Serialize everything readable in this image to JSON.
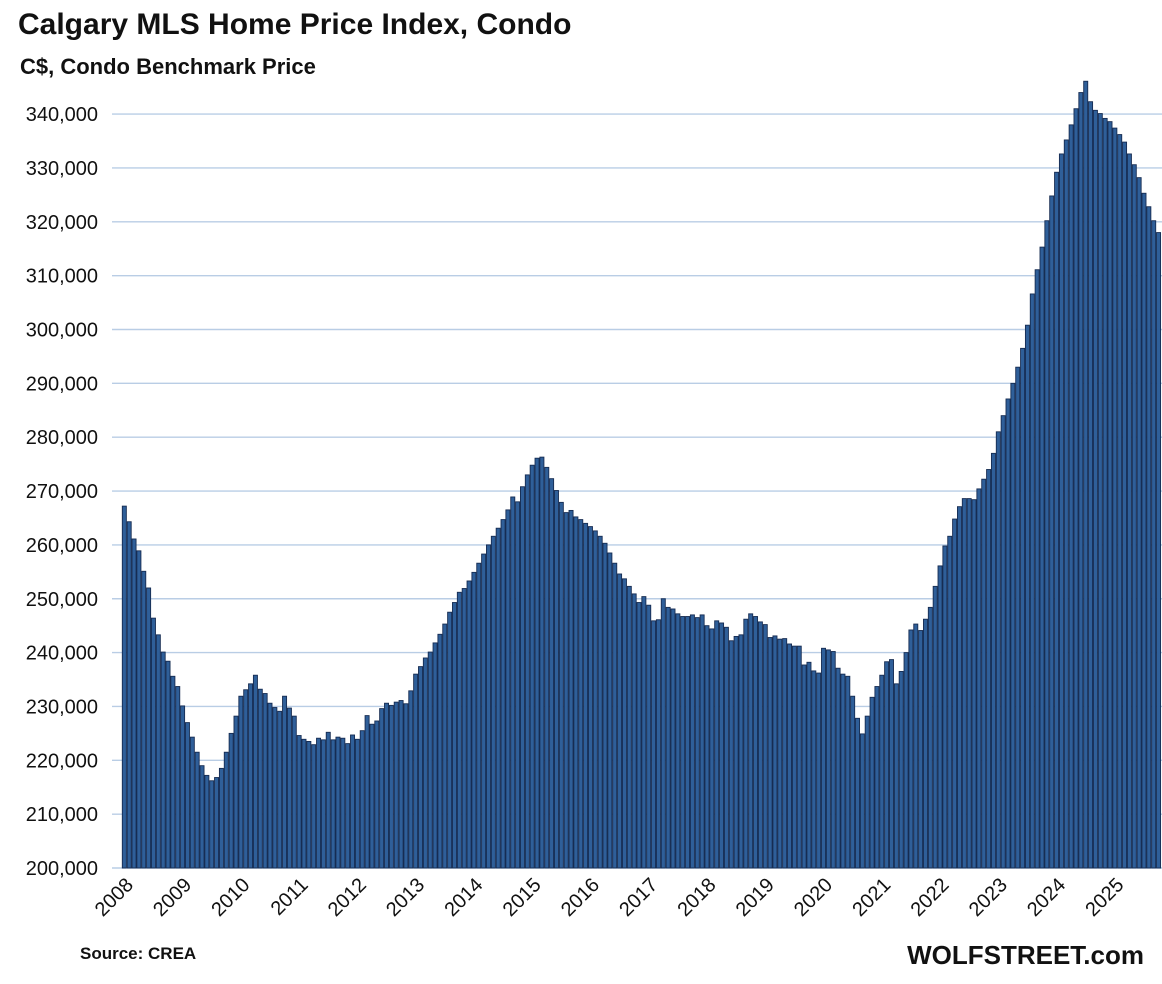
{
  "header": {
    "title": "Calgary MLS Home Price Index, Condo",
    "subtitle": "C$, Condo Benchmark Price"
  },
  "footer": {
    "source": "Source: CREA",
    "watermark": "WOLFSTREET.com"
  },
  "colors": {
    "bar_fill": "#2f5f99",
    "bar_border": "#162c52",
    "gridline": "#b9cde5",
    "text": "#111111",
    "background": "#ffffff"
  },
  "chart_data": {
    "type": "bar",
    "title": "Calgary MLS Home Price Index, Condo",
    "subtitle": "C$, Condo Benchmark Price",
    "xlabel": "",
    "ylabel": "C$, Condo Benchmark Price",
    "frequency": "monthly",
    "x_start": "2008-01",
    "x_end": "2025-10",
    "ylim": [
      200000,
      347000
    ],
    "y_tick_min": 200000,
    "y_tick_max": 340000,
    "y_tick_step": 10000,
    "grid": "horizontal",
    "legend": "none",
    "x_tick_labels": [
      "2008",
      "2009",
      "2010",
      "2011",
      "2012",
      "2013",
      "2014",
      "2015",
      "2016",
      "2017",
      "2018",
      "2019",
      "2020",
      "2021",
      "2022",
      "2023",
      "2024",
      "2025"
    ],
    "series": [
      {
        "name": "Condo Benchmark Price (C$)",
        "values": [
          267200,
          264300,
          261100,
          258900,
          255100,
          252000,
          246400,
          243300,
          240100,
          238400,
          235600,
          233700,
          230100,
          227000,
          224300,
          221500,
          219000,
          217200,
          216200,
          216800,
          218500,
          221500,
          225000,
          228200,
          231900,
          233100,
          234200,
          235800,
          233200,
          232400,
          230600,
          229800,
          229100,
          231900,
          229700,
          228200,
          224600,
          223900,
          223500,
          222900,
          224100,
          223800,
          225200,
          223800,
          224300,
          224100,
          223100,
          224700,
          223900,
          225500,
          228300,
          226700,
          227300,
          229600,
          230600,
          230200,
          230800,
          231100,
          230500,
          232900,
          236000,
          237400,
          239000,
          240100,
          241800,
          243400,
          245300,
          247500,
          249300,
          251200,
          251900,
          253300,
          254900,
          256600,
          258300,
          260000,
          261600,
          263100,
          264700,
          266500,
          268900,
          268000,
          270800,
          273000,
          274800,
          276100,
          276300,
          274400,
          272300,
          270100,
          267900,
          266000,
          266400,
          265200,
          264700,
          264000,
          263400,
          262600,
          261600,
          260300,
          258500,
          256600,
          254600,
          253700,
          252300,
          250900,
          249300,
          250400,
          248800,
          245900,
          246100,
          250000,
          248400,
          248100,
          247200,
          246700,
          246700,
          247000,
          246500,
          247000,
          245000,
          244400,
          245900,
          245500,
          244700,
          242200,
          243000,
          243300,
          246200,
          247200,
          246700,
          245700,
          245200,
          242800,
          243100,
          242500,
          242600,
          241600,
          241200,
          241200,
          237700,
          238200,
          236600,
          236200,
          240800,
          240500,
          240200,
          237100,
          236000,
          235600,
          231900,
          227800,
          224900,
          228200,
          231700,
          233700,
          235800,
          238300,
          238700,
          234200,
          236500,
          240000,
          244200,
          245300,
          244100,
          246200,
          248400,
          252300,
          256100,
          259800,
          261600,
          264800,
          267100,
          268600,
          268600,
          268400,
          270400,
          272200,
          274000,
          277000,
          281000,
          284000,
          287100,
          290000,
          293000,
          296500,
          300800,
          306600,
          311100,
          315300,
          320200,
          324800,
          329200,
          332600,
          335200,
          338000,
          341000,
          344000,
          346100,
          342300,
          340700,
          340100,
          339200,
          338600,
          337400,
          336200,
          334800,
          332600,
          330600,
          328200,
          325300,
          322800,
          320200,
          318000
        ]
      }
    ]
  }
}
